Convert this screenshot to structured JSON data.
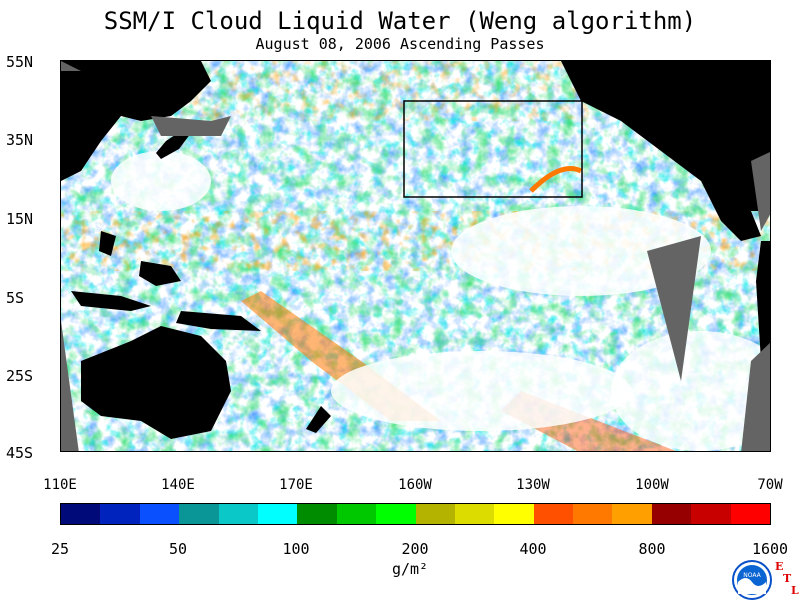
{
  "title": "SSM/I Cloud Liquid Water (Weng algorithm)",
  "subtitle": "August 08, 2006  Ascending Passes",
  "lat_labels": [
    "55N",
    "35N",
    "15N",
    "5S",
    "25S",
    "45S"
  ],
  "lon_labels": [
    "110E",
    "140E",
    "170E",
    "160W",
    "130W",
    "100W",
    "70W"
  ],
  "colorbar": {
    "colors": [
      "#000a78",
      "#0023be",
      "#0a50ff",
      "#0a9696",
      "#0ac8c8",
      "#00ffff",
      "#008c00",
      "#00c800",
      "#00ff00",
      "#b4b400",
      "#dcdc00",
      "#ffff00",
      "#ff5000",
      "#ff7800",
      "#ffa000",
      "#960000",
      "#c80000",
      "#ff0000"
    ],
    "tick_labels": [
      "25",
      "50",
      "100",
      "200",
      "400",
      "800",
      "1600"
    ],
    "units": "g/m²"
  },
  "logo": {
    "name": "noaa-logo",
    "text": "NOAA"
  },
  "etl_letters": [
    "E",
    "T",
    "L"
  ],
  "map": {
    "land_color": "#000000",
    "no_data_color": "#646464",
    "clear_color": "#ffffff"
  }
}
